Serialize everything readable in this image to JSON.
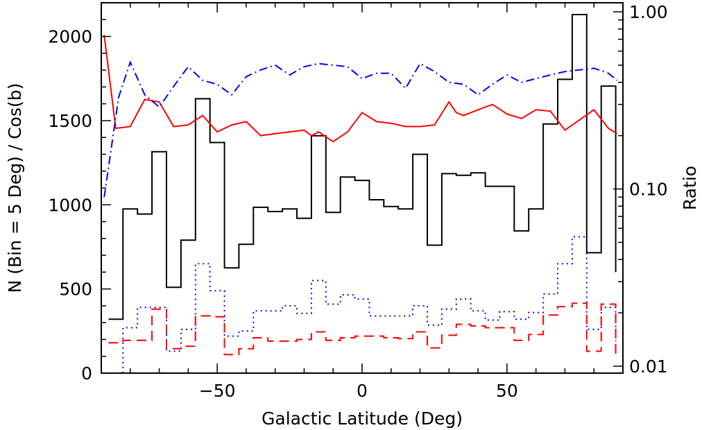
{
  "chart_data": {
    "type": "line",
    "title": "",
    "xlabel": "Galactic Latitude (Deg)",
    "ylabel": "N (Bin = 5 Deg) / Cos(b)",
    "y2label": "Ratio",
    "xlim": [
      -90,
      90
    ],
    "ylim": [
      0,
      2200
    ],
    "y2lim": [
      0.01,
      1.0
    ],
    "y2scale": "log",
    "grid": false,
    "legend": "none",
    "x_ticks": [
      {
        "value": -50,
        "label": "−50"
      },
      {
        "value": 0,
        "label": "0"
      },
      {
        "value": 50,
        "label": "50"
      }
    ],
    "y_ticks": [
      {
        "value": 0,
        "label": "0"
      },
      {
        "value": 500,
        "label": "500"
      },
      {
        "value": 1000,
        "label": "1000"
      },
      {
        "value": 1500,
        "label": "1500"
      },
      {
        "value": 2000,
        "label": "2000"
      }
    ],
    "y2_ticks": [
      {
        "value": 0.01,
        "label": "0.01"
      },
      {
        "value": 0.1,
        "label": "0.10"
      },
      {
        "value": 1.0,
        "label": "1.00"
      }
    ],
    "bin_edges": [
      -87.5,
      -82.5,
      -77.5,
      -72.5,
      -67.5,
      -62.5,
      -57.5,
      -52.5,
      -47.5,
      -42.5,
      -37.5,
      -32.5,
      -27.5,
      -22.5,
      -17.5,
      -12.5,
      -7.5,
      -2.5,
      2.5,
      7.5,
      12.5,
      17.5,
      22.5,
      27.5,
      32.5,
      37.5,
      42.5,
      47.5,
      52.5,
      57.5,
      62.5,
      67.5,
      72.5,
      77.5,
      82.5,
      87.5
    ],
    "series": [
      {
        "style": "black-solid-step",
        "color": "#000000",
        "axis": "left",
        "values": [
          320,
          975,
          945,
          1315,
          510,
          790,
          1630,
          1370,
          625,
          765,
          985,
          960,
          975,
          920,
          1410,
          955,
          1165,
          1145,
          1030,
          990,
          975,
          1300,
          760,
          1185,
          1175,
          1190,
          1110,
          1110,
          845,
          975,
          1480,
          1745,
          2130,
          715,
          1705,
          600
        ]
      },
      {
        "style": "blue-dotted-step",
        "color": "#0000ff",
        "axis": "left",
        "values": [
          0,
          270,
          390,
          390,
          130,
          260,
          650,
          490,
          220,
          250,
          370,
          370,
          400,
          355,
          550,
          410,
          465,
          440,
          340,
          340,
          340,
          400,
          285,
          380,
          440,
          370,
          315,
          365,
          320,
          360,
          470,
          650,
          810,
          260,
          390,
          190
        ]
      },
      {
        "style": "red-dashed-step",
        "color": "#ff0000",
        "axis": "left",
        "values": [
          180,
          195,
          195,
          380,
          145,
          160,
          340,
          335,
          110,
          145,
          210,
          190,
          190,
          200,
          245,
          195,
          210,
          220,
          220,
          210,
          205,
          245,
          150,
          225,
          290,
          280,
          270,
          270,
          195,
          230,
          345,
          395,
          415,
          130,
          410,
          105
        ]
      },
      {
        "style": "red-solid",
        "color": "#ff0000",
        "axis": "right",
        "x": [
          -89,
          -85,
          -80,
          -75,
          -70,
          -65,
          -60,
          -55,
          -50,
          -45,
          -40,
          -35,
          -30,
          -25,
          -20,
          -17.5,
          -15,
          -10,
          -5,
          0,
          5,
          10,
          15,
          20,
          25,
          30,
          32.5,
          35,
          40,
          45,
          50,
          55,
          60,
          65,
          70,
          75,
          80,
          85,
          88
        ],
        "values": [
          0.74,
          0.22,
          0.225,
          0.32,
          0.31,
          0.225,
          0.23,
          0.26,
          0.21,
          0.23,
          0.24,
          0.2,
          0.205,
          0.21,
          0.215,
          0.2,
          0.21,
          0.185,
          0.21,
          0.27,
          0.24,
          0.235,
          0.225,
          0.225,
          0.23,
          0.31,
          0.27,
          0.26,
          0.28,
          0.3,
          0.265,
          0.25,
          0.28,
          0.275,
          0.215,
          0.245,
          0.28,
          0.22,
          0.205
        ]
      },
      {
        "style": "blue-dash-dot",
        "color": "#0000ff",
        "axis": "right",
        "x": [
          -89,
          -84,
          -80,
          -75,
          -70,
          -65,
          -60,
          -55,
          -50,
          -45,
          -40,
          -35,
          -30,
          -25,
          -20,
          -15,
          -10,
          -5,
          0,
          5,
          10,
          15,
          20,
          25,
          30,
          35,
          40,
          45,
          50,
          55,
          60,
          65,
          70,
          75,
          80,
          85,
          88
        ],
        "values": [
          0.09,
          0.33,
          0.52,
          0.34,
          0.29,
          0.38,
          0.49,
          0.41,
          0.39,
          0.34,
          0.43,
          0.47,
          0.5,
          0.44,
          0.49,
          0.51,
          0.5,
          0.49,
          0.42,
          0.45,
          0.45,
          0.37,
          0.51,
          0.46,
          0.4,
          0.39,
          0.34,
          0.39,
          0.44,
          0.4,
          0.42,
          0.44,
          0.46,
          0.47,
          0.48,
          0.45,
          0.41
        ]
      }
    ]
  }
}
